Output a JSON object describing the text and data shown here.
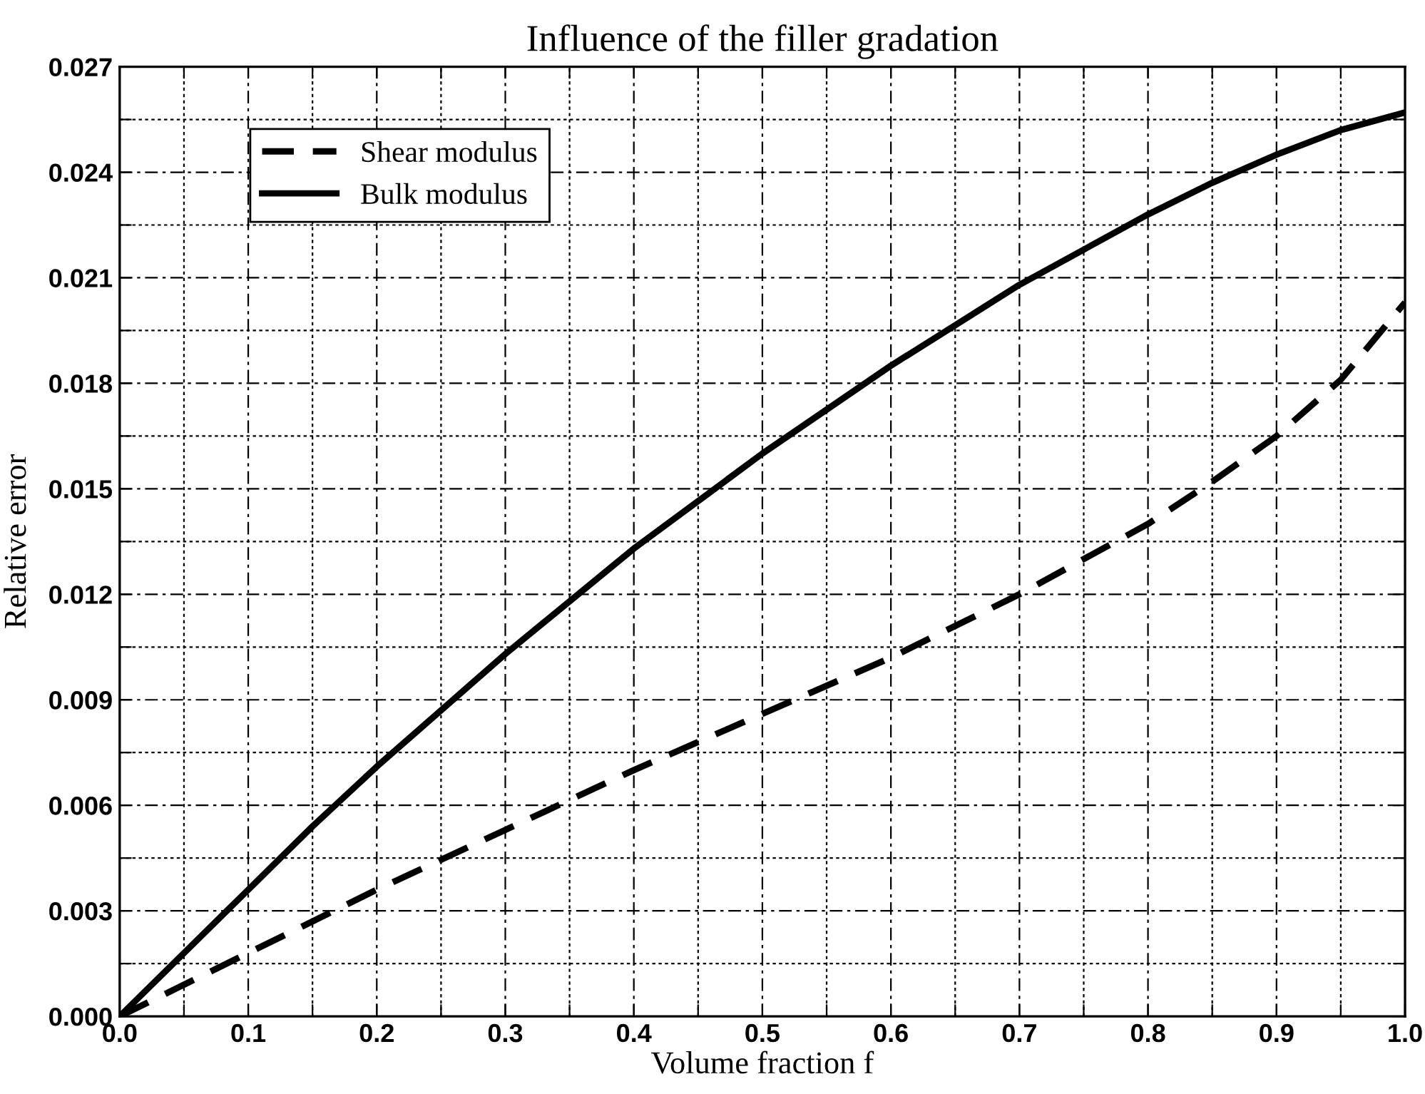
{
  "chart_data": {
    "type": "line",
    "title": "Influence of the filler gradation",
    "xlabel": "Volume fraction f",
    "ylabel": "Relative error",
    "x": [
      0,
      0.05,
      0.1,
      0.15,
      0.2,
      0.3,
      0.4,
      0.5,
      0.6,
      0.7,
      0.8,
      0.85,
      0.9,
      0.95,
      1.0
    ],
    "series": [
      {
        "name": "Shear modulus",
        "color": "#000000",
        "line_style": "dashed",
        "values": [
          0,
          0.0009,
          0.0018,
          0.0027,
          0.0036,
          0.0053,
          0.007,
          0.0086,
          0.0102,
          0.012,
          0.014,
          0.0152,
          0.0165,
          0.0181,
          0.0203
        ]
      },
      {
        "name": "Bulk modulus",
        "color": "#000000",
        "line_style": "solid",
        "values": [
          0,
          0.0018,
          0.0036,
          0.0054,
          0.0071,
          0.0103,
          0.0133,
          0.016,
          0.0185,
          0.0208,
          0.0228,
          0.0237,
          0.0245,
          0.0252,
          0.0257
        ]
      }
    ],
    "xlim": [
      0,
      1.0
    ],
    "ylim": [
      0,
      0.027
    ],
    "xticks": [
      {
        "value": 0,
        "label": "0.0"
      },
      {
        "value": 0.05,
        "label": null
      },
      0.1,
      {
        "value": 0.15,
        "label": null
      },
      0.2,
      {
        "value": 0.25,
        "label": null
      },
      0.3,
      {
        "value": 0.35,
        "label": null
      },
      0.4,
      {
        "value": 0.45,
        "label": null
      },
      0.5,
      {
        "value": 0.55,
        "label": null
      },
      0.6,
      {
        "value": 0.65,
        "label": null
      },
      0.7,
      {
        "value": 0.75,
        "label": null
      },
      0.8,
      {
        "value": 0.85,
        "label": null
      },
      0.9,
      {
        "value": 0.95,
        "label": null
      },
      {
        "value": 1,
        "label": "1.0"
      }
    ],
    "yticks": [
      {
        "value": 0,
        "label": "0.000"
      },
      {
        "value": 0.0015,
        "label": null
      },
      {
        "value": 0.003,
        "label": "0.003"
      },
      {
        "value": 0.0045,
        "label": null
      },
      {
        "value": 0.006,
        "label": "0.006"
      },
      {
        "value": 0.0075,
        "label": null
      },
      {
        "value": 0.009,
        "label": "0.009"
      },
      {
        "value": 0.0105,
        "label": null
      },
      {
        "value": 0.012,
        "label": "0.012"
      },
      {
        "value": 0.0135,
        "label": null
      },
      {
        "value": 0.015,
        "label": "0.015"
      },
      {
        "value": 0.0165,
        "label": null
      },
      {
        "value": 0.018,
        "label": "0.018"
      },
      {
        "value": 0.0195,
        "label": null
      },
      {
        "value": 0.021,
        "label": "0.021"
      },
      {
        "value": 0.0225,
        "label": null
      },
      {
        "value": 0.024,
        "label": "0.024"
      },
      {
        "value": 0.0255,
        "label": null
      },
      {
        "value": 0.027,
        "label": "0.027"
      }
    ],
    "grid": true,
    "legend": "top left"
  }
}
